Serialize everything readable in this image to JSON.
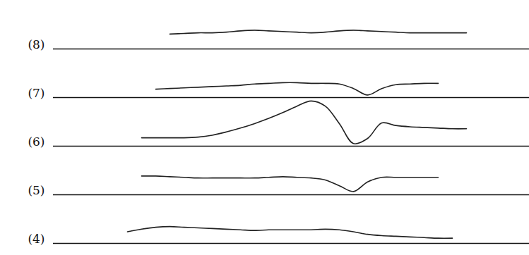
{
  "chart_data": {
    "type": "line",
    "color": "#222222",
    "tick_labels": false,
    "xlim": [
      75,
      749
    ],
    "ylim": [
      0,
      72
    ],
    "x": [
      180,
      200,
      220,
      240,
      260,
      280,
      300,
      320,
      340,
      360,
      380,
      400,
      420,
      440,
      460,
      480,
      500,
      520,
      540,
      560,
      580,
      600,
      620,
      640,
      660,
      680
    ],
    "series": [
      {
        "name": "(8)",
        "values": [
          null,
          null,
          null,
          23,
          24,
          25,
          25,
          26,
          28,
          29,
          28,
          27,
          26,
          25,
          26,
          28,
          29,
          28,
          27,
          26,
          25,
          25,
          25,
          25,
          25,
          null
        ]
      },
      {
        "name": "(7)",
        "values": [
          null,
          null,
          13,
          14,
          15,
          16,
          17,
          18,
          19,
          21,
          22,
          23,
          23,
          22,
          22,
          21,
          14,
          4,
          14,
          20,
          21,
          22,
          22,
          null,
          null,
          null
        ]
      },
      {
        "name": "(6)",
        "values": [
          null,
          13,
          13,
          13,
          13,
          14,
          17,
          22,
          28,
          35,
          43,
          52,
          62,
          70,
          62,
          35,
          4,
          12,
          36,
          32,
          30,
          29,
          28,
          27,
          27,
          null
        ]
      },
      {
        "name": "(5)",
        "values": [
          null,
          29,
          29,
          28,
          27,
          26,
          26,
          26,
          26,
          26,
          27,
          28,
          27,
          26,
          23,
          14,
          5,
          20,
          27,
          27,
          27,
          27,
          27,
          null,
          null,
          null
        ]
      },
      {
        "name": "(4)",
        "values": [
          18,
          22,
          25,
          26,
          25,
          24,
          23,
          22,
          21,
          20,
          21,
          21,
          21,
          21,
          22,
          21,
          18,
          14,
          12,
          11,
          10,
          9,
          8,
          8,
          null,
          null
        ]
      }
    ]
  }
}
